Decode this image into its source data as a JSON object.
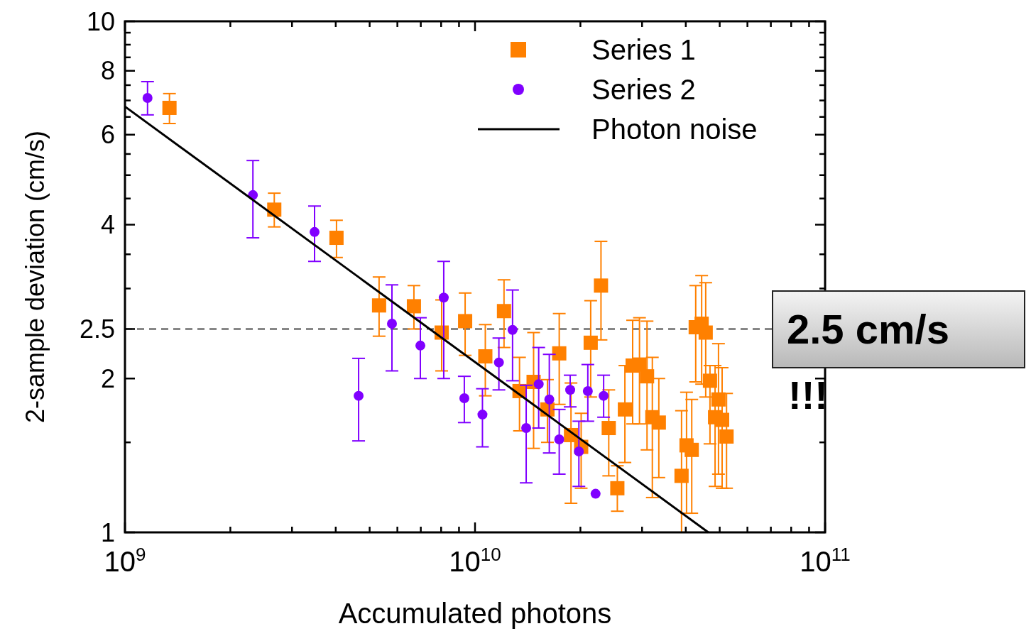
{
  "chart_data": {
    "type": "scatter",
    "xlabel": "Accumulated photons",
    "ylabel": "2-sample deviation (cm/s)",
    "log": "xy",
    "xlim": [
      1000000000.0,
      100000000000.0
    ],
    "ylim": [
      1,
      10
    ],
    "xticks": [
      {
        "value": 1000000000.0,
        "label": "10$^{9}$"
      },
      {
        "value": 2000000000.0,
        "label": null
      },
      {
        "value": 3000000000.0,
        "label": null
      },
      {
        "value": 4000000000.0,
        "label": null
      },
      {
        "value": 5000000000.0,
        "label": null
      },
      {
        "value": 6000000000.0,
        "label": null
      },
      {
        "value": 7000000000.0,
        "label": null
      },
      {
        "value": 8000000000.0,
        "label": null
      },
      {
        "value": 9000000000.0,
        "label": null
      },
      {
        "value": 10000000000.0,
        "label": "10$^{10}$"
      },
      {
        "value": 20000000000.0,
        "label": null
      },
      {
        "value": 30000000000.0,
        "label": null
      },
      {
        "value": 40000000000.0,
        "label": null
      },
      {
        "value": 50000000000.0,
        "label": null
      },
      {
        "value": 60000000000.0,
        "label": null
      },
      {
        "value": 70000000000.0,
        "label": null
      },
      {
        "value": 80000000000.0,
        "label": null
      },
      {
        "value": 90000000000.0,
        "label": null
      },
      {
        "value": 100000000000.0,
        "label": "10$^{11}$"
      }
    ],
    "yticks": [
      1,
      {
        "value": 1.5,
        "label": null
      },
      2,
      2.5,
      {
        "value": 3,
        "label": null
      },
      {
        "value": 3.5,
        "label": null
      },
      4,
      {
        "value": 4.5,
        "label": null
      },
      {
        "value": 5,
        "label": null
      },
      {
        "value": 5.5,
        "label": null
      },
      6,
      {
        "value": 6.5,
        "label": null
      },
      {
        "value": 7,
        "label": null
      },
      {
        "value": 7.5,
        "label": null
      },
      8,
      {
        "value": 8.5,
        "label": null
      },
      {
        "value": 9,
        "label": null
      },
      {
        "value": 9.5,
        "label": null
      },
      10
    ],
    "grid": false,
    "legend": "top right",
    "series": [
      {
        "name": "Series 1",
        "color": "#ff8000",
        "marker": "square",
        "x": [
          1340000000.0,
          2670000000.0,
          4020000000.0,
          5320000000.0,
          6690000000.0,
          8030000000.0,
          9370000000.0,
          10700000000.0,
          12100000000.0,
          13400000000.0,
          14700000000.0,
          16100000000.0,
          17400000000.0,
          18800000000.0,
          20100000000.0,
          21400000000.0,
          22900000000.0,
          24100000000.0,
          25500000000.0,
          26800000000.0,
          28200000000.0,
          29500000000.0,
          31000000000.0,
          32100000000.0,
          33500000000.0,
          38900000000.0,
          40200000000.0,
          41600000000.0,
          42700000000.0,
          44400000000.0,
          45600000000.0,
          46900000000.0,
          48500000000.0,
          49600000000.0,
          50800000000.0,
          52300000000.0
        ],
        "values": [
          6.77,
          4.28,
          3.77,
          2.78,
          2.77,
          2.46,
          2.59,
          2.21,
          2.71,
          1.89,
          1.97,
          1.74,
          2.24,
          1.55,
          1.47,
          2.35,
          3.04,
          1.6,
          1.22,
          1.74,
          2.12,
          2.13,
          2.02,
          1.68,
          1.64,
          1.29,
          1.48,
          1.45,
          2.52,
          2.56,
          2.46,
          1.98,
          1.68,
          1.82,
          1.66,
          1.54
        ],
        "errors": [
          [
            6.31,
            7.22
          ],
          [
            3.96,
            4.61
          ],
          [
            3.45,
            4.08
          ],
          [
            2.42,
            3.16
          ],
          [
            2.5,
            3.04
          ],
          [
            2.07,
            2.85
          ],
          [
            2.22,
            2.94
          ],
          [
            1.85,
            2.55
          ],
          [
            2.3,
            3.12
          ],
          [
            1.58,
            2.2
          ],
          [
            1.46,
            2.46
          ],
          [
            1.5,
            1.99
          ],
          [
            1.78,
            2.68
          ],
          [
            1.14,
            1.96
          ],
          [
            1.22,
            1.71
          ],
          [
            1.84,
            2.84
          ],
          [
            2.38,
            3.71
          ],
          [
            1.29,
            1.9
          ],
          [
            1.1,
            1.35
          ],
          [
            1.37,
            2.12
          ],
          [
            1.63,
            2.6
          ],
          [
            1.63,
            2.63
          ],
          [
            1.45,
            2.59
          ],
          [
            1.17,
            2.2
          ],
          [
            1.28,
            2.0
          ],
          [
            1.0,
            1.73
          ],
          [
            1.09,
            1.88
          ],
          [
            1.09,
            1.82
          ],
          [
            1.97,
            3.04
          ],
          [
            1.95,
            3.18
          ],
          [
            1.84,
            3.08
          ],
          [
            1.49,
            2.12
          ],
          [
            1.23,
            2.12
          ],
          [
            1.3,
            2.34
          ],
          [
            1.22,
            2.1
          ],
          [
            1.22,
            1.87
          ]
        ]
      },
      {
        "name": "Series 2",
        "color": "#8000ff",
        "marker": "circle",
        "x": [
          1160000000.0,
          2320000000.0,
          3480000000.0,
          4650000000.0,
          5790000000.0,
          6980000000.0,
          8140000000.0,
          9320000000.0,
          10500000000.0,
          11700000000.0,
          12800000000.0,
          14000000000.0,
          15200000000.0,
          16300000000.0,
          17400000000.0,
          18700000000.0,
          19800000000.0,
          21000000000.0,
          22100000000.0,
          23300000000.0
        ],
        "values": [
          7.08,
          4.57,
          3.87,
          1.85,
          2.56,
          2.32,
          2.88,
          1.83,
          1.7,
          2.15,
          2.49,
          1.6,
          1.95,
          1.82,
          1.52,
          1.9,
          1.44,
          1.89,
          1.19,
          1.85
        ],
        "errors": [
          [
            6.56,
            7.62
          ],
          [
            3.77,
            5.34
          ],
          [
            3.39,
            4.35
          ],
          [
            1.51,
            2.19
          ],
          [
            2.07,
            3.05
          ],
          [
            2.0,
            2.63
          ],
          [
            2.0,
            3.39
          ],
          [
            1.64,
            2.02
          ],
          [
            1.47,
            1.91
          ],
          [
            1.9,
            2.4
          ],
          [
            1.98,
            2.98
          ],
          [
            1.25,
            1.94
          ],
          [
            1.6,
            2.3
          ],
          [
            1.43,
            2.23
          ],
          [
            1.3,
            1.74
          ],
          [
            1.76,
            2.03
          ],
          [
            1.23,
            1.65
          ],
          [
            1.65,
            2.13
          ],
          null,
          [
            1.68,
            2.03
          ]
        ]
      },
      {
        "name": "Photon noise",
        "type": "line",
        "color": "#000000",
        "x": [
          1000000000.0,
          46400000000.0
        ],
        "values": [
          6.81,
          1
        ]
      }
    ],
    "ref_lines": [
      {
        "axis": "y",
        "value": 2.5,
        "color": "#000000",
        "line_style": "dashed"
      }
    ],
    "annotations": [
      "2.5 cm/s",
      "!!!"
    ]
  }
}
